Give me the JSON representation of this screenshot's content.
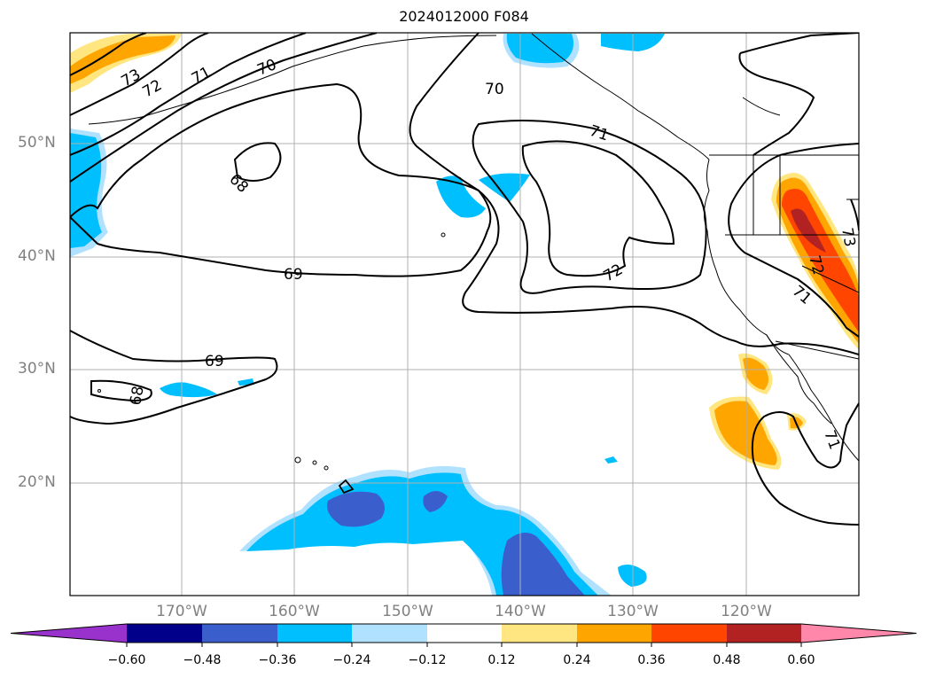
{
  "title": "2024012000 F084",
  "lat_labels": [
    "50°N",
    "40°N",
    "30°N",
    "20°N"
  ],
  "lon_labels": [
    "170°W",
    "160°W",
    "150°W",
    "140°W",
    "130°W",
    "120°W"
  ],
  "contour_labels": [
    "73",
    "72",
    "71",
    "70",
    "68",
    "69",
    "69",
    "68",
    "70",
    "71",
    "72",
    "72",
    "71",
    "73",
    "71"
  ],
  "colorbar": {
    "tick_labels": [
      "−0.60",
      "−0.48",
      "−0.36",
      "−0.24",
      "−0.12",
      "0.12",
      "0.24",
      "0.36",
      "0.48",
      "0.60"
    ],
    "colors": [
      "#9932cc",
      "#00008b",
      "#3a5fcd",
      "#00bfff",
      "#b0e2ff",
      "#ffffff",
      "#ffe680",
      "#ffa500",
      "#ff4500",
      "#b22222",
      "#ff88aa"
    ]
  },
  "colors": {
    "grid": "#b0b0b0",
    "contour": "#000000",
    "coast": "#000000"
  }
}
